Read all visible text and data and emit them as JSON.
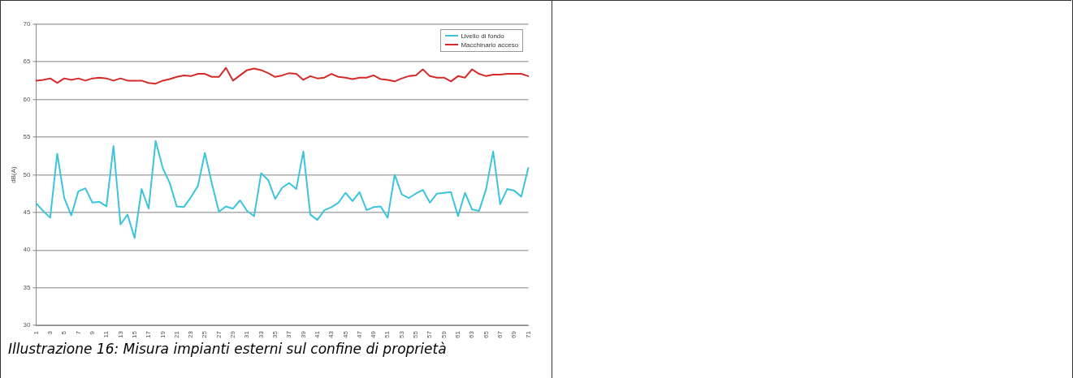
{
  "chart_data": {
    "type": "line",
    "ylabel": "dB(A)",
    "categories": [
      "1",
      null,
      "3",
      null,
      "5",
      null,
      "7",
      null,
      "9",
      null,
      "11",
      null,
      "13",
      null,
      "15",
      null,
      "17",
      null,
      "19",
      null,
      "21",
      null,
      "23",
      null,
      "25",
      null,
      "27",
      null,
      "29",
      null,
      "31",
      null,
      "33",
      null,
      "35",
      null,
      "37",
      null,
      "39",
      null,
      "41",
      null,
      "43",
      null,
      "45",
      null,
      "47",
      null,
      "49",
      null,
      "51",
      null,
      "53",
      null,
      "55",
      null,
      "57",
      null,
      "59",
      null,
      "61",
      null,
      "63",
      null,
      "65",
      null,
      "67",
      null,
      "69",
      null,
      "71"
    ],
    "series": [
      {
        "name": "Livello di fondo",
        "color": "#3cc4dc",
        "values": [
          46.2,
          45.2,
          44.3,
          52.8,
          46.9,
          44.6,
          47.8,
          48.2,
          46.3,
          46.4,
          45.8,
          53.8,
          43.4,
          44.7,
          41.6,
          48.1,
          45.5,
          54.5,
          50.9,
          48.9,
          45.8,
          45.7,
          47.0,
          48.5,
          52.9,
          48.8,
          45.1,
          45.8,
          45.5,
          46.6,
          45.2,
          44.5,
          50.2,
          49.3,
          46.8,
          48.3,
          48.9,
          48.1,
          53.1,
          44.7,
          44.0,
          45.3,
          45.7,
          46.3,
          47.6,
          46.5,
          47.7,
          45.3,
          45.7,
          45.8,
          44.3,
          50.0,
          47.4,
          46.9,
          47.5,
          48.0,
          46.3,
          47.5,
          47.6,
          47.7,
          44.5,
          47.6,
          45.4,
          45.2,
          48.1,
          53.1,
          46.1,
          48.1,
          47.9,
          47.1,
          50.9
        ]
      },
      {
        "name": "Macchinario acceso",
        "color": "#d42a2a",
        "values": [
          62.5,
          62.6,
          62.8,
          62.2,
          62.8,
          62.6,
          62.8,
          62.5,
          62.8,
          62.9,
          62.8,
          62.5,
          62.8,
          62.5,
          62.5,
          62.5,
          62.2,
          62.1,
          62.5,
          62.7,
          63.0,
          63.2,
          63.1,
          63.4,
          63.4,
          63.0,
          63.0,
          64.2,
          62.5,
          63.2,
          63.9,
          64.1,
          63.9,
          63.5,
          63.0,
          63.2,
          63.5,
          63.4,
          62.6,
          63.1,
          62.8,
          62.9,
          63.4,
          63.0,
          62.9,
          62.7,
          62.9,
          62.9,
          63.2,
          62.7,
          62.6,
          62.4,
          62.8,
          63.1,
          63.2,
          64.0,
          63.1,
          62.9,
          62.9,
          62.4,
          63.1,
          62.9,
          64.0,
          63.4,
          63.1,
          63.3,
          63.3,
          63.4,
          63.4,
          63.4,
          63.1
        ]
      }
    ],
    "ylim": [
      30,
      70
    ],
    "yticks": [
      30,
      35,
      40,
      45,
      50,
      55,
      60,
      65,
      70
    ],
    "grid": "y",
    "legend": "top right",
    "marker": "none",
    "line_style": "solid",
    "annotations": [
      "Illustrazione 16: Misura impianti esterni sul confine di proprietà"
    ]
  }
}
